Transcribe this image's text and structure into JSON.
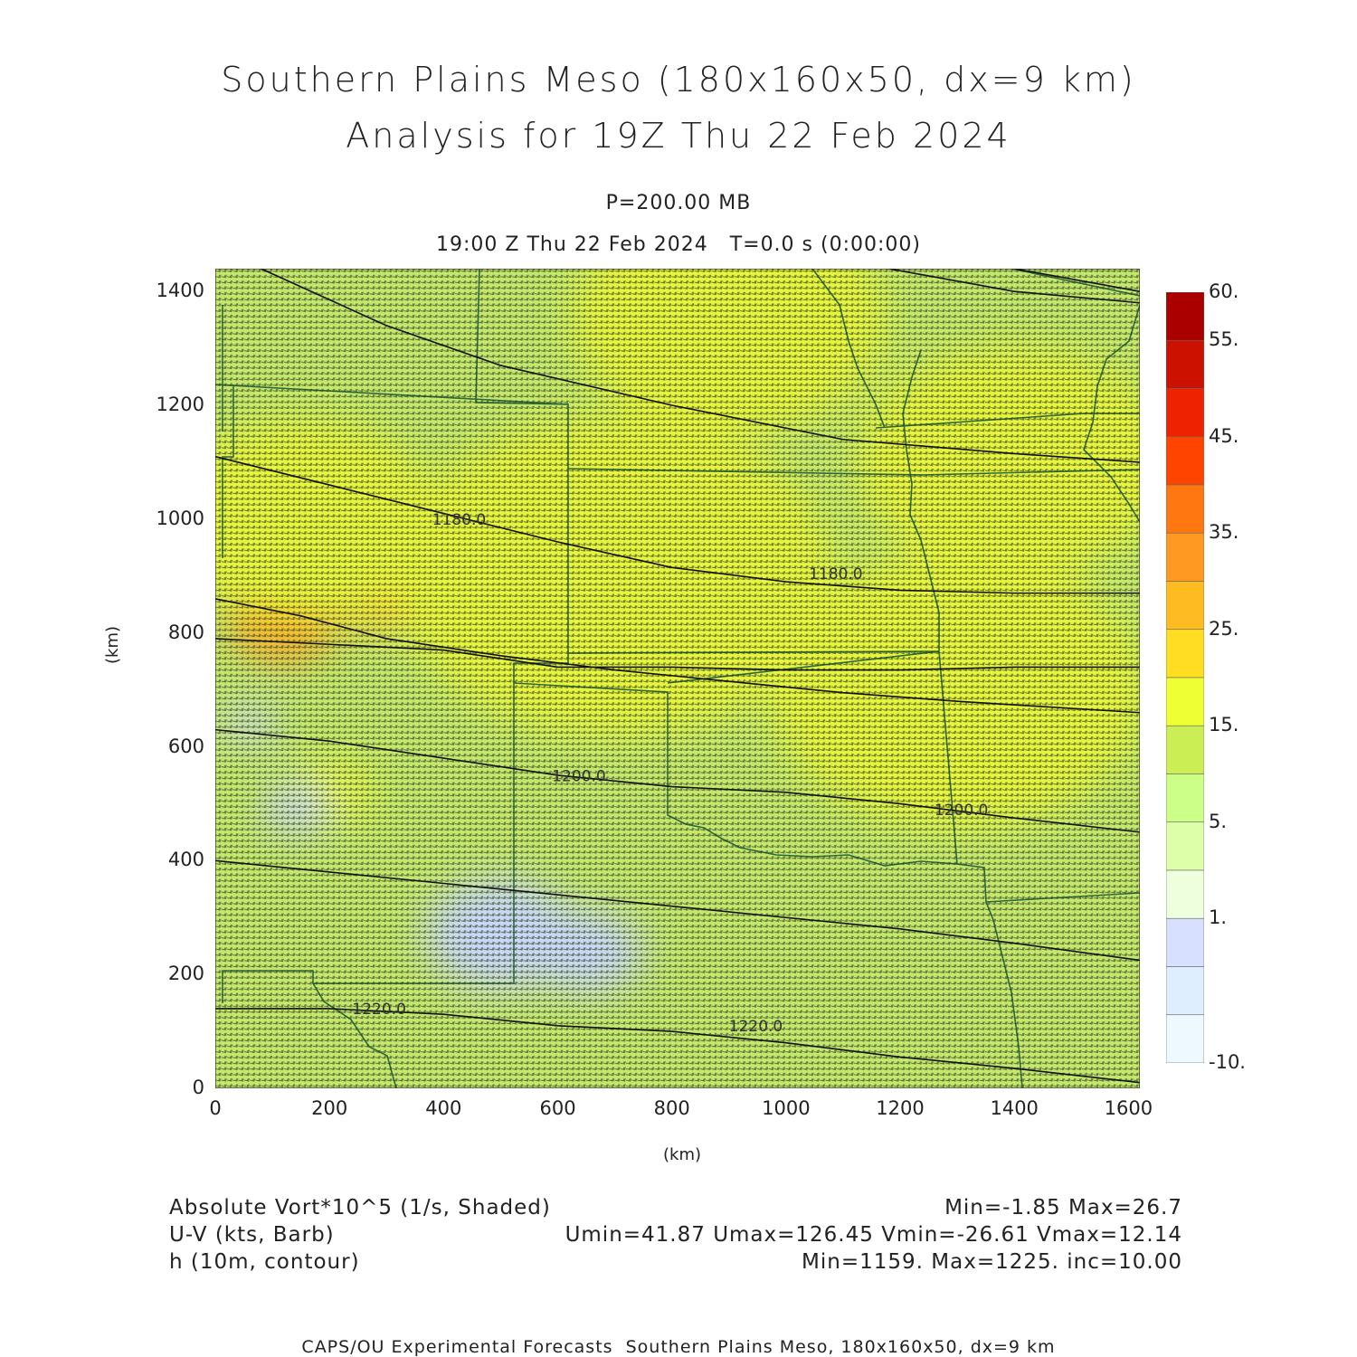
{
  "header": {
    "title_line1": "Southern Plains Meso (180x160x50, dx=9 km)",
    "title_line2": "Analysis for 19Z Thu 22 Feb 2024",
    "level": "P=200.00 MB",
    "time": "19:00 Z Thu 22 Feb 2024   T=0.0 s (0:00:00)"
  },
  "axes": {
    "x_ticks": [
      "0",
      "200",
      "400",
      "600",
      "800",
      "1000",
      "1200",
      "1400",
      "1600"
    ],
    "y_ticks": [
      "0",
      "200",
      "400",
      "600",
      "800",
      "1000",
      "1200",
      "1400"
    ],
    "x_label": "(km)",
    "y_label": "(km)",
    "x_range": [
      0,
      1620
    ],
    "y_range": [
      0,
      1440
    ]
  },
  "colorbar": {
    "labels": [
      "60.",
      "55.",
      "45.",
      "35.",
      "25.",
      "15.",
      "5.",
      "1.",
      "-10."
    ],
    "colors": [
      "#aa0000",
      "#cc1100",
      "#ee2200",
      "#ff4400",
      "#ff7711",
      "#ff9922",
      "#ffbb22",
      "#ffdd22",
      "#eeff33",
      "#ccee55",
      "#ccff88",
      "#ddffaa",
      "#eeffdd",
      "#d8e0ff",
      "#dfeeff",
      "#eef8ff"
    ]
  },
  "chart_data": {
    "type": "heatmap",
    "fields": {
      "shaded": "Absolute Vort*10^5 (1/s, Shaded)",
      "barbs": "U-V (kts, Barb)",
      "contour": "h (10m, contour)"
    },
    "contour_labels": [
      {
        "text": "1180.0",
        "x": 380,
        "y": 990
      },
      {
        "text": "1180.0",
        "x": 1040,
        "y": 895
      },
      {
        "text": "1200.0",
        "x": 590,
        "y": 540
      },
      {
        "text": "1200.0",
        "x": 1260,
        "y": 480
      },
      {
        "text": "1220.0",
        "x": 240,
        "y": 130
      },
      {
        "text": "1220.0",
        "x": 900,
        "y": 100
      }
    ],
    "contours": [
      {
        "points": [
          [
            80,
            1440
          ],
          [
            300,
            1340
          ],
          [
            500,
            1270
          ],
          [
            800,
            1200
          ],
          [
            1100,
            1140
          ],
          [
            1400,
            1115
          ],
          [
            1620,
            1100
          ]
        ]
      },
      {
        "points": [
          [
            0,
            1110
          ],
          [
            200,
            1060
          ],
          [
            400,
            1010
          ],
          [
            600,
            960
          ],
          [
            800,
            915
          ],
          [
            1000,
            890
          ],
          [
            1200,
            875
          ],
          [
            1400,
            870
          ],
          [
            1620,
            870
          ]
        ]
      },
      {
        "points": [
          [
            0,
            860
          ],
          [
            150,
            830
          ],
          [
            300,
            790
          ],
          [
            500,
            760
          ],
          [
            700,
            735
          ],
          [
            900,
            715
          ],
          [
            1100,
            695
          ],
          [
            1300,
            680
          ],
          [
            1620,
            660
          ]
        ]
      },
      {
        "points": [
          [
            0,
            790
          ],
          [
            200,
            780
          ],
          [
            400,
            770
          ],
          [
            600,
            740
          ],
          [
            800,
            740
          ],
          [
            1000,
            735
          ],
          [
            1200,
            735
          ],
          [
            1400,
            740
          ],
          [
            1620,
            740
          ]
        ]
      },
      {
        "points": [
          [
            0,
            630
          ],
          [
            200,
            610
          ],
          [
            400,
            580
          ],
          [
            600,
            550
          ],
          [
            800,
            530
          ],
          [
            1000,
            520
          ],
          [
            1200,
            500
          ],
          [
            1400,
            475
          ],
          [
            1620,
            450
          ]
        ]
      },
      {
        "points": [
          [
            0,
            400
          ],
          [
            200,
            380
          ],
          [
            400,
            360
          ],
          [
            600,
            340
          ],
          [
            800,
            320
          ],
          [
            1000,
            300
          ],
          [
            1200,
            280
          ],
          [
            1400,
            255
          ],
          [
            1620,
            225
          ]
        ]
      },
      {
        "points": [
          [
            0,
            140
          ],
          [
            200,
            140
          ],
          [
            400,
            130
          ],
          [
            600,
            110
          ],
          [
            800,
            100
          ],
          [
            1000,
            80
          ],
          [
            1200,
            55
          ],
          [
            1400,
            35
          ],
          [
            1620,
            10
          ]
        ]
      },
      {
        "points": [
          [
            1400,
            1440
          ],
          [
            1620,
            1400
          ]
        ]
      },
      {
        "points": [
          [
            1180,
            1440
          ],
          [
            1400,
            1400
          ],
          [
            1620,
            1380
          ]
        ]
      }
    ],
    "vort_blobs": [
      {
        "x": 120,
        "y": 830,
        "r": 90,
        "value": 26
      },
      {
        "x": 290,
        "y": 860,
        "r": 70,
        "value": 24
      },
      {
        "x": 900,
        "y": 1350,
        "r": 250,
        "value": 19
      },
      {
        "x": 1400,
        "y": 1100,
        "r": 250,
        "value": 19
      },
      {
        "x": 700,
        "y": 900,
        "r": 350,
        "value": 18
      },
      {
        "x": 1300,
        "y": 700,
        "r": 300,
        "value": 18
      },
      {
        "x": 150,
        "y": 1000,
        "r": 220,
        "value": 18
      },
      {
        "x": 200,
        "y": 520,
        "r": 70,
        "value": 20
      },
      {
        "x": 500,
        "y": 270,
        "r": 120,
        "value": 2
      },
      {
        "x": 650,
        "y": 240,
        "r": 90,
        "value": 2
      },
      {
        "x": 140,
        "y": 490,
        "r": 50,
        "value": 2
      },
      {
        "x": 60,
        "y": 640,
        "r": 40,
        "value": 3
      }
    ],
    "summary": {
      "vort": "Min=-1.85 Max=26.7",
      "wind": "Umin=41.87 Umax=126.45 Vmin=-26.61 Vmax=12.14",
      "height": "Min=1159. Max=1225. inc=10.00"
    }
  },
  "footer": "CAPS/OU Experimental Forecasts  Southern Plains Meso, 180x160x50, dx=9 km"
}
